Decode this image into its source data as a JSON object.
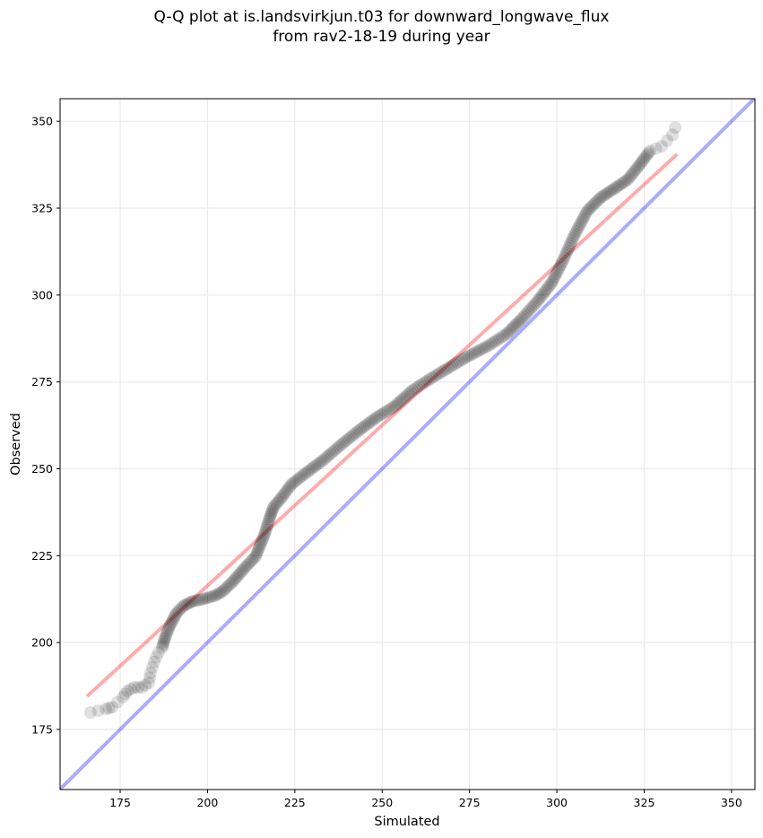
{
  "chart_data": {
    "type": "scatter",
    "title": "Q-Q plot at is.landsvirkjun.t03 for downward_longwave_flux",
    "subtitle": "from rav2-18-19 during year",
    "xlabel": "Simulated",
    "ylabel": "Observed",
    "xlim": [
      157.8,
      356.7
    ],
    "ylim": [
      157.7,
      356.5
    ],
    "xticks": [
      175,
      200,
      225,
      250,
      275,
      300,
      325,
      350
    ],
    "yticks": [
      175,
      200,
      225,
      250,
      275,
      300,
      325,
      350
    ],
    "xtick_labels": [
      "175",
      "200",
      "225",
      "250",
      "275",
      "300",
      "325",
      "350"
    ],
    "ytick_labels": [
      "175",
      "200",
      "225",
      "250",
      "275",
      "300",
      "325",
      "350"
    ],
    "grid": true,
    "series": [
      {
        "name": "quantiles",
        "kind": "scatter",
        "color": "#000000",
        "alpha": 0.12,
        "points": [
          [
            166.5,
            179.9
          ],
          [
            170.9,
            180.9
          ],
          [
            172.7,
            181.4
          ],
          [
            175.8,
            184.3
          ],
          [
            177.1,
            186.1
          ],
          [
            179.1,
            187.1
          ],
          [
            181.2,
            187.1
          ],
          [
            183.2,
            188.4
          ],
          [
            183.7,
            191.3
          ],
          [
            184.7,
            194.4
          ],
          [
            186.0,
            197.2
          ],
          [
            187.0,
            198.5
          ],
          [
            188.1,
            202.1
          ],
          [
            189.4,
            205.2
          ],
          [
            191.2,
            208.6
          ],
          [
            193.2,
            210.6
          ],
          [
            195.8,
            211.9
          ],
          [
            198.4,
            212.4
          ],
          [
            202.2,
            213.5
          ],
          [
            204.3,
            214.7
          ],
          [
            207.3,
            217.6
          ],
          [
            210.4,
            221.2
          ],
          [
            213.8,
            224.8
          ],
          [
            215.0,
            227.9
          ],
          [
            216.3,
            231.0
          ],
          [
            217.9,
            236.2
          ],
          [
            218.9,
            239.0
          ],
          [
            221.5,
            242.1
          ],
          [
            224.0,
            245.5
          ],
          [
            227.9,
            248.6
          ],
          [
            233.0,
            252.4
          ],
          [
            238.1,
            256.8
          ],
          [
            243.3,
            261.0
          ],
          [
            248.4,
            264.8
          ],
          [
            253.5,
            267.9
          ],
          [
            258.7,
            272.6
          ],
          [
            263.8,
            275.9
          ],
          [
            268.9,
            279.0
          ],
          [
            274.1,
            282.1
          ],
          [
            280.5,
            285.5
          ],
          [
            285.6,
            288.8
          ],
          [
            290.0,
            293.2
          ],
          [
            294.6,
            298.4
          ],
          [
            298.5,
            303.5
          ],
          [
            301.8,
            310.0
          ],
          [
            304.9,
            317.0
          ],
          [
            308.7,
            324.2
          ],
          [
            312.6,
            328.1
          ],
          [
            316.4,
            330.6
          ],
          [
            320.3,
            333.2
          ],
          [
            323.4,
            337.1
          ],
          [
            326.7,
            341.5
          ],
          [
            330.0,
            342.8
          ],
          [
            333.1,
            346.1
          ],
          [
            333.9,
            348.2
          ]
        ]
      },
      {
        "name": "fit-line",
        "kind": "line",
        "color": "#ff0000",
        "alpha": 0.33,
        "x": [
          165.5,
          334.4
        ],
        "y": [
          184.5,
          340.5
        ]
      },
      {
        "name": "one-to-one-line",
        "kind": "line",
        "color": "#0000ff",
        "alpha": 0.33,
        "x": [
          157.7,
          356.7
        ],
        "y": [
          157.7,
          356.7
        ]
      }
    ]
  }
}
